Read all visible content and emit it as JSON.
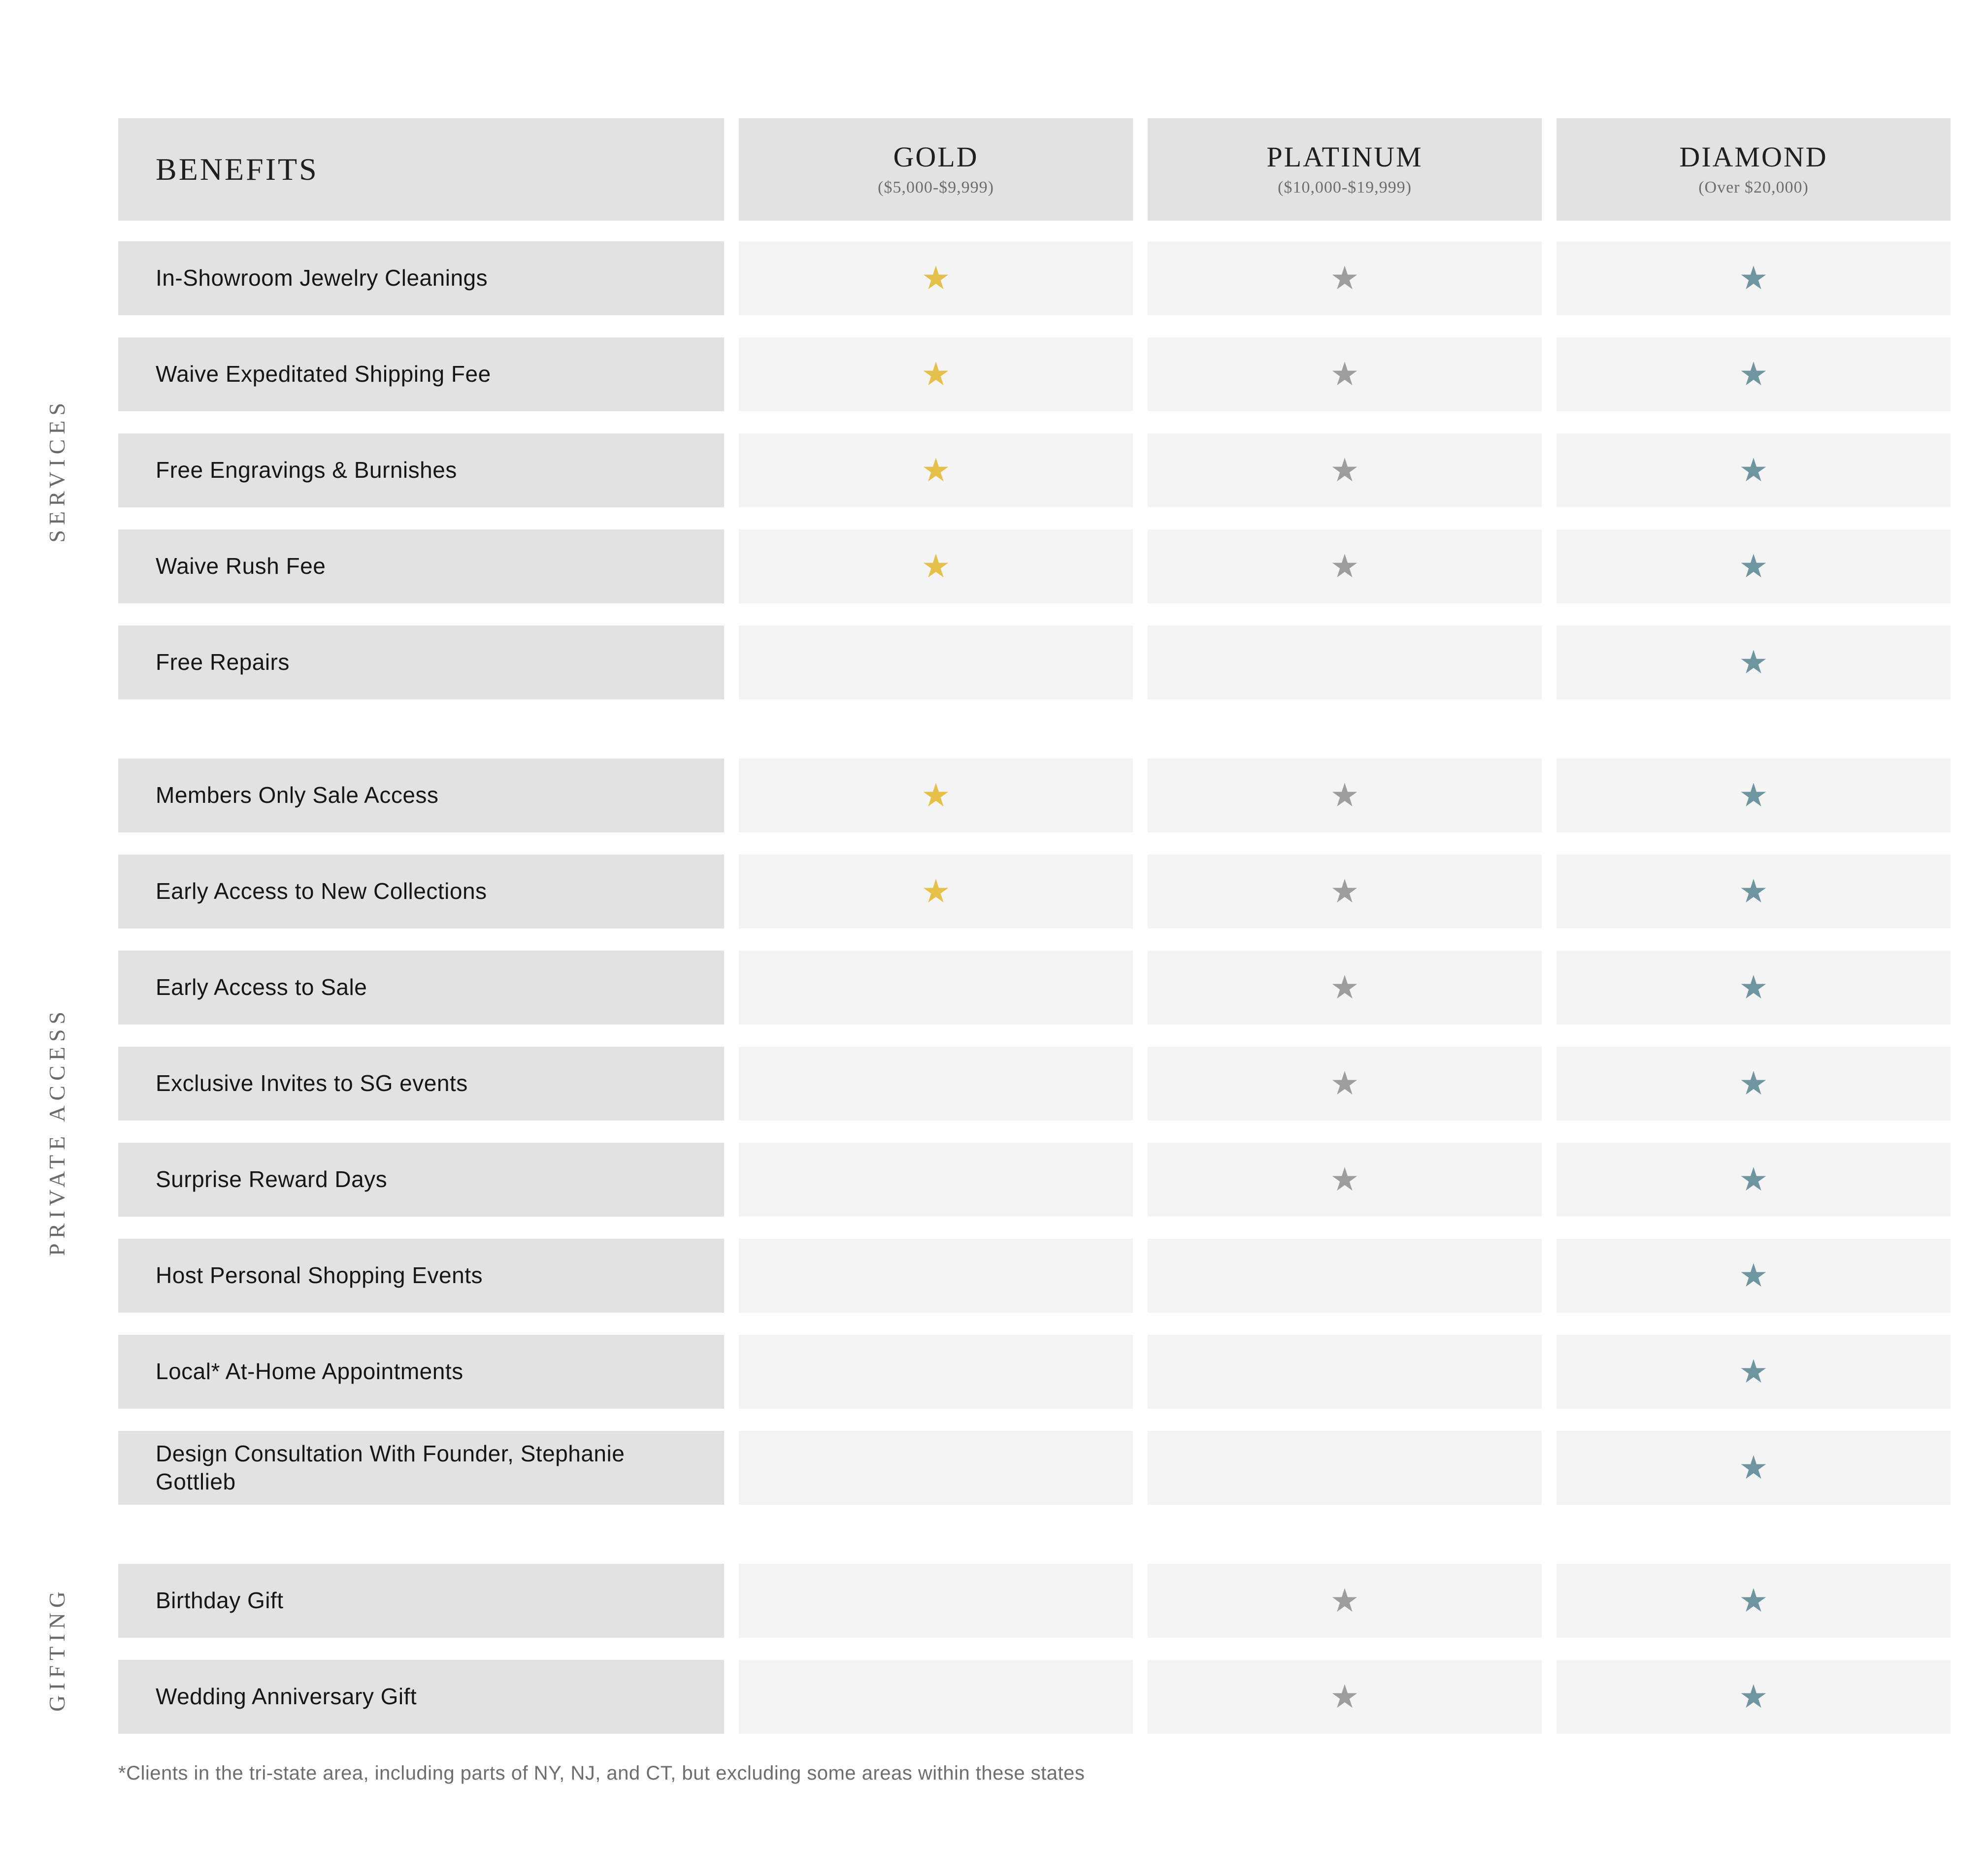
{
  "colors": {
    "label_cell_bg": "#e2e2e2",
    "star_cell_bg": "#f4f4f4",
    "header_text": "#1f1f1f",
    "muted_text": "#6e6e6e",
    "section_label_text": "#6a6a6a"
  },
  "table": {
    "benefits_header": "BENEFITS",
    "star_glyph": "★",
    "tiers": [
      {
        "id": "gold",
        "name": "GOLD",
        "range": "($5,000-$9,999)",
        "star_color": "#e5c14b"
      },
      {
        "id": "platinum",
        "name": "PLATINUM",
        "range": "($10,000-$19,999)",
        "star_color": "#9d9d9d"
      },
      {
        "id": "diamond",
        "name": "DIAMOND",
        "range": "(Over $20,000)",
        "star_color": "#6f96a0"
      }
    ],
    "sections": [
      {
        "id": "services",
        "label": "SERVICES",
        "rows": [
          {
            "benefit": "In-Showroom Jewelry Cleanings",
            "gold": true,
            "platinum": true,
            "diamond": true
          },
          {
            "benefit": "Waive Expeditated Shipping Fee",
            "gold": true,
            "platinum": true,
            "diamond": true
          },
          {
            "benefit": "Free Engravings & Burnishes",
            "gold": true,
            "platinum": true,
            "diamond": true
          },
          {
            "benefit": "Waive Rush Fee",
            "gold": true,
            "platinum": true,
            "diamond": true
          },
          {
            "benefit": "Free Repairs",
            "gold": false,
            "platinum": false,
            "diamond": true
          }
        ]
      },
      {
        "id": "private-access",
        "label": "PRIVATE ACCESS",
        "rows": [
          {
            "benefit": "Members Only Sale Access",
            "gold": true,
            "platinum": true,
            "diamond": true
          },
          {
            "benefit": "Early Access to New Collections",
            "gold": true,
            "platinum": true,
            "diamond": true
          },
          {
            "benefit": "Early Access to Sale",
            "gold": false,
            "platinum": true,
            "diamond": true
          },
          {
            "benefit": "Exclusive Invites to SG events",
            "gold": false,
            "platinum": true,
            "diamond": true
          },
          {
            "benefit": "Surprise Reward Days",
            "gold": false,
            "platinum": true,
            "diamond": true
          },
          {
            "benefit": "Host Personal Shopping Events",
            "gold": false,
            "platinum": false,
            "diamond": true
          },
          {
            "benefit": "Local* At-Home Appointments",
            "gold": false,
            "platinum": false,
            "diamond": true
          },
          {
            "benefit": "Design Consultation With Founder, Stephanie Gottlieb",
            "gold": false,
            "platinum": false,
            "diamond": true
          }
        ]
      },
      {
        "id": "gifting",
        "label": "GIFTING",
        "rows": [
          {
            "benefit": "Birthday Gift",
            "gold": false,
            "platinum": true,
            "diamond": true
          },
          {
            "benefit": "Wedding Anniversary Gift",
            "gold": false,
            "platinum": true,
            "diamond": true
          }
        ]
      }
    ]
  },
  "footnote": "*Clients in the tri-state area, including parts of NY, NJ, and CT, but excluding some areas within these states"
}
